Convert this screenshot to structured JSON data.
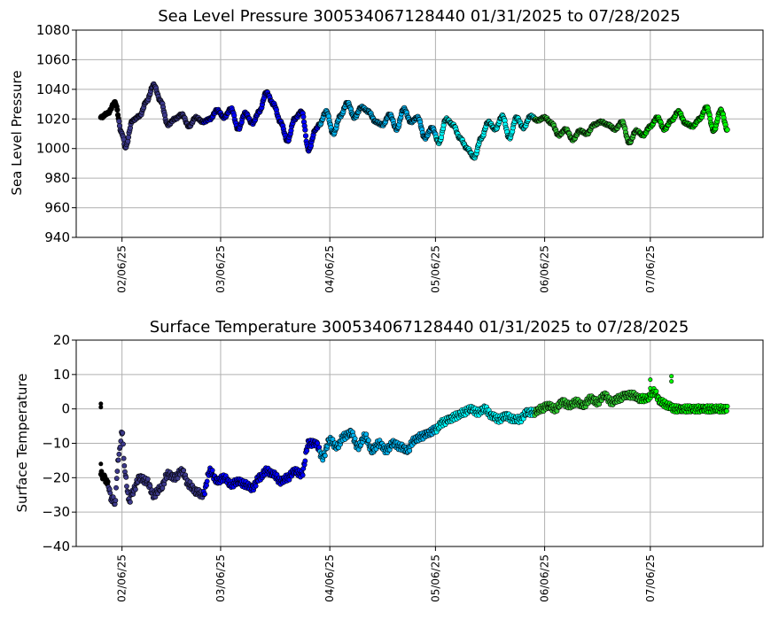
{
  "chart_data": [
    {
      "type": "scatter",
      "title": "Sea Level Pressure 300534067128440  01/31/2025 to 07/28/2025",
      "xlabel": "",
      "ylabel": "Sea Level Pressure",
      "ylim": [
        940,
        1080
      ],
      "yticks": [
        940,
        960,
        980,
        1000,
        1020,
        1040,
        1060,
        1080
      ],
      "xlim": [
        "2025-01-24",
        "2025-08-07"
      ],
      "xticks": [
        "02/06/25",
        "03/06/25",
        "04/06/25",
        "05/06/25",
        "06/06/25",
        "07/06/25"
      ],
      "grid": true,
      "marker_edge_color": "#000000",
      "segment_colors": [
        {
          "from": "2025-01-31",
          "to": "2025-02-05",
          "color": "#000000"
        },
        {
          "from": "2025-02-05",
          "to": "2025-03-01",
          "color": "#3d3a8c"
        },
        {
          "from": "2025-03-01",
          "to": "2025-04-03",
          "color": "#0000ff"
        },
        {
          "from": "2025-04-03",
          "to": "2025-05-06",
          "color": "#00b4f0"
        },
        {
          "from": "2025-05-06",
          "to": "2025-06-03",
          "color": "#00ffff"
        },
        {
          "from": "2025-06-03",
          "to": "2025-07-03",
          "color": "#32cd32"
        },
        {
          "from": "2025-07-03",
          "to": "2025-07-28",
          "color": "#00ff00"
        }
      ],
      "x": [
        "2025-01-31",
        "2025-02-02",
        "2025-02-04",
        "2025-02-06",
        "2025-02-07",
        "2025-02-09",
        "2025-02-11",
        "2025-02-13",
        "2025-02-15",
        "2025-02-17",
        "2025-02-19",
        "2025-02-21",
        "2025-02-23",
        "2025-02-25",
        "2025-02-27",
        "2025-03-01",
        "2025-03-03",
        "2025-03-05",
        "2025-03-07",
        "2025-03-09",
        "2025-03-11",
        "2025-03-13",
        "2025-03-15",
        "2025-03-17",
        "2025-03-19",
        "2025-03-21",
        "2025-03-23",
        "2025-03-25",
        "2025-03-27",
        "2025-03-29",
        "2025-03-31",
        "2025-04-02",
        "2025-04-03",
        "2025-04-05",
        "2025-04-07",
        "2025-04-09",
        "2025-04-11",
        "2025-04-13",
        "2025-04-15",
        "2025-04-17",
        "2025-04-19",
        "2025-04-21",
        "2025-04-23",
        "2025-04-25",
        "2025-04-27",
        "2025-04-29",
        "2025-05-01",
        "2025-05-03",
        "2025-05-05",
        "2025-05-07",
        "2025-05-09",
        "2025-05-11",
        "2025-05-13",
        "2025-05-15",
        "2025-05-17",
        "2025-05-19",
        "2025-05-21",
        "2025-05-23",
        "2025-05-25",
        "2025-05-27",
        "2025-05-29",
        "2025-05-31",
        "2025-06-02",
        "2025-06-04",
        "2025-06-06",
        "2025-06-08",
        "2025-06-10",
        "2025-06-12",
        "2025-06-14",
        "2025-06-16",
        "2025-06-18",
        "2025-06-20",
        "2025-06-22",
        "2025-06-24",
        "2025-06-26",
        "2025-06-28",
        "2025-06-30",
        "2025-07-02",
        "2025-07-04",
        "2025-07-06",
        "2025-07-08",
        "2025-07-10",
        "2025-07-12",
        "2025-07-14",
        "2025-07-16",
        "2025-07-18",
        "2025-07-20",
        "2025-07-22",
        "2025-07-24",
        "2025-07-26",
        "2025-07-28"
      ],
      "y": [
        1021,
        1024,
        1031,
        1010,
        1001,
        1019,
        1022,
        1032,
        1043,
        1032,
        1016,
        1020,
        1023,
        1015,
        1021,
        1018,
        1020,
        1026,
        1021,
        1027,
        1013,
        1024,
        1017,
        1025,
        1038,
        1030,
        1018,
        1005,
        1020,
        1025,
        999,
        1013,
        1016,
        1025,
        1010,
        1022,
        1031,
        1021,
        1028,
        1025,
        1018,
        1016,
        1023,
        1013,
        1027,
        1018,
        1021,
        1007,
        1014,
        1004,
        1020,
        1016,
        1007,
        1000,
        994,
        1007,
        1018,
        1013,
        1022,
        1007,
        1021,
        1014,
        1022,
        1019,
        1021,
        1017,
        1009,
        1013,
        1006,
        1012,
        1010,
        1016,
        1018,
        1016,
        1013,
        1018,
        1004,
        1012,
        1009,
        1015,
        1021,
        1013,
        1019,
        1025,
        1017,
        1015,
        1020,
        1028,
        1012,
        1026,
        1012
      ]
    },
    {
      "type": "scatter",
      "title": "Surface Temperature 300534067128440  01/31/2025 to 07/28/2025",
      "xlabel": "",
      "ylabel": "Surface Temperature",
      "ylim": [
        -40,
        20
      ],
      "yticks": [
        -40,
        -30,
        -20,
        -10,
        0,
        10,
        20
      ],
      "xlim": [
        "2025-01-24",
        "2025-08-07"
      ],
      "xticks": [
        "02/06/25",
        "03/06/25",
        "04/06/25",
        "05/06/25",
        "06/06/25",
        "07/06/25"
      ],
      "grid": true,
      "marker_edge_color": "#000000",
      "segment_colors": [
        {
          "from": "2025-01-31",
          "to": "2025-02-02",
          "color": "#000000"
        },
        {
          "from": "2025-02-02",
          "to": "2025-03-01",
          "color": "#3d3a8c"
        },
        {
          "from": "2025-03-01",
          "to": "2025-04-03",
          "color": "#0000ff"
        },
        {
          "from": "2025-04-03",
          "to": "2025-05-06",
          "color": "#00b4f0"
        },
        {
          "from": "2025-05-06",
          "to": "2025-06-03",
          "color": "#00ffff"
        },
        {
          "from": "2025-06-03",
          "to": "2025-07-03",
          "color": "#32cd32"
        },
        {
          "from": "2025-07-03",
          "to": "2025-07-28",
          "color": "#00ff00"
        }
      ],
      "x": [
        "2025-01-31",
        "2025-02-01",
        "2025-02-02",
        "2025-02-03",
        "2025-02-04",
        "2025-02-05",
        "2025-02-06",
        "2025-02-07",
        "2025-02-08",
        "2025-02-09",
        "2025-02-11",
        "2025-02-13",
        "2025-02-15",
        "2025-02-17",
        "2025-02-19",
        "2025-02-21",
        "2025-02-23",
        "2025-02-25",
        "2025-02-27",
        "2025-03-01",
        "2025-03-03",
        "2025-03-05",
        "2025-03-07",
        "2025-03-09",
        "2025-03-11",
        "2025-03-13",
        "2025-03-15",
        "2025-03-17",
        "2025-03-19",
        "2025-03-21",
        "2025-03-23",
        "2025-03-25",
        "2025-03-27",
        "2025-03-29",
        "2025-03-31",
        "2025-04-02",
        "2025-04-04",
        "2025-04-06",
        "2025-04-08",
        "2025-04-10",
        "2025-04-12",
        "2025-04-14",
        "2025-04-16",
        "2025-04-18",
        "2025-04-20",
        "2025-04-22",
        "2025-04-24",
        "2025-04-26",
        "2025-04-28",
        "2025-04-30",
        "2025-05-02",
        "2025-05-04",
        "2025-05-06",
        "2025-05-08",
        "2025-05-10",
        "2025-05-12",
        "2025-05-14",
        "2025-05-16",
        "2025-05-18",
        "2025-05-20",
        "2025-05-22",
        "2025-05-24",
        "2025-05-26",
        "2025-05-28",
        "2025-05-30",
        "2025-06-01",
        "2025-06-03",
        "2025-06-05",
        "2025-06-07",
        "2025-06-09",
        "2025-06-11",
        "2025-06-13",
        "2025-06-15",
        "2025-06-17",
        "2025-06-19",
        "2025-06-21",
        "2025-06-23",
        "2025-06-25",
        "2025-06-27",
        "2025-06-29",
        "2025-07-01",
        "2025-07-03",
        "2025-07-05",
        "2025-07-07",
        "2025-07-09",
        "2025-07-11",
        "2025-07-13",
        "2025-07-15",
        "2025-07-17",
        "2025-07-19",
        "2025-07-21",
        "2025-07-23",
        "2025-07-25",
        "2025-07-27",
        "2025-07-28"
      ],
      "y": [
        -19,
        -20,
        -22,
        -26,
        -27,
        -14,
        -7,
        -20,
        -27,
        -24,
        -20,
        -21,
        -25,
        -23,
        -19,
        -20,
        -18,
        -22,
        -24,
        -25,
        -18,
        -21,
        -20,
        -22,
        -21,
        -22,
        -23,
        -20,
        -18,
        -19,
        -21,
        -20,
        -18,
        -19,
        -10,
        -10,
        -14,
        -9,
        -11,
        -8,
        -7,
        -11,
        -8,
        -12,
        -10,
        -12,
        -10,
        -11,
        -12,
        -9,
        -8,
        -7,
        -6,
        -4,
        -3,
        -2,
        -1,
        0,
        -1,
        0,
        -2,
        -3,
        -2,
        -3,
        -3,
        -1,
        -1,
        0,
        1,
        0,
        2,
        1,
        2,
        1,
        3,
        2,
        4,
        2,
        3,
        4,
        4,
        3,
        3,
        5,
        2,
        1,
        0,
        0,
        0,
        0,
        0,
        0,
        0,
        0,
        0
      ],
      "outliers": [
        {
          "x": "2025-01-31",
          "y": 1.5
        },
        {
          "x": "2025-01-31",
          "y": 0.5
        },
        {
          "x": "2025-01-31",
          "y": -16
        },
        {
          "x": "2025-07-06",
          "y": 8.5
        },
        {
          "x": "2025-07-06",
          "y": 6
        },
        {
          "x": "2025-07-12",
          "y": 9.5
        },
        {
          "x": "2025-07-12",
          "y": 8
        }
      ]
    }
  ]
}
